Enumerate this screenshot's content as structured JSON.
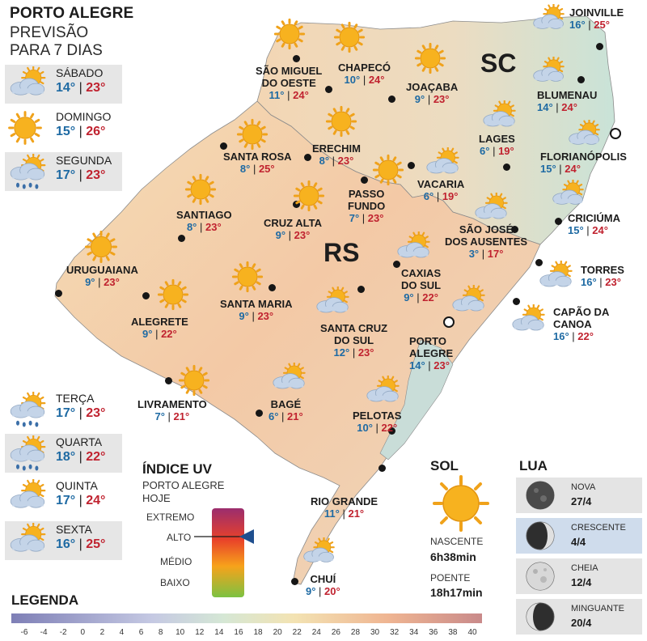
{
  "header": {
    "city": "PORTO ALEGRE",
    "line2": "PREVISÃO",
    "line3": "PARA 7 DIAS"
  },
  "forecast_days_top": [
    {
      "day": "SÁBADO",
      "min": "14°",
      "max": "23°",
      "icon": "sun-cloud-icon"
    },
    {
      "day": "DOMINGO",
      "min": "15°",
      "max": "26°",
      "icon": "sun-icon"
    },
    {
      "day": "SEGUNDA",
      "min": "17°",
      "max": "23°",
      "icon": "sun-cloud-rain-icon"
    }
  ],
  "forecast_days_bottom": [
    {
      "day": "TERÇA",
      "min": "17°",
      "max": "23°",
      "icon": "sun-cloud-rain-icon"
    },
    {
      "day": "QUARTA",
      "min": "18°",
      "max": "22°",
      "icon": "sun-cloud-rain-icon"
    },
    {
      "day": "QUINTA",
      "min": "17°",
      "max": "24°",
      "icon": "sun-cloud-icon"
    },
    {
      "day": "SEXTA",
      "min": "16°",
      "max": "25°",
      "icon": "sun-cloud-icon"
    }
  ],
  "states": [
    "SC",
    "RS"
  ],
  "cities": [
    {
      "name": "JOINVILLE",
      "min": "16°",
      "max": "25°",
      "icon": "sun-cloud-icon"
    },
    {
      "name": "BLUMENAU",
      "min": "14°",
      "max": "24°",
      "icon": "sun-cloud-icon"
    },
    {
      "name": "FLORIANÓPOLIS",
      "min": "15°",
      "max": "24°",
      "icon": "sun-cloud-icon"
    },
    {
      "name": "CRICIÚMA",
      "min": "15°",
      "max": "24°",
      "icon": "sun-cloud-icon"
    },
    {
      "name": "TORRES",
      "min": "16°",
      "max": "23°",
      "icon": "sun-cloud-icon"
    },
    {
      "name": "CAPÃO DA\nCANOA",
      "min": "16°",
      "max": "22°",
      "icon": "sun-cloud-icon"
    },
    {
      "name": "SÃO MIGUEL\nDO OESTE",
      "min": "11°",
      "max": "24°",
      "icon": "sun-icon"
    },
    {
      "name": "CHAPECÓ",
      "min": "10°",
      "max": "24°",
      "icon": "sun-icon"
    },
    {
      "name": "JOAÇABA",
      "min": "9°",
      "max": "23°",
      "icon": "sun-icon"
    },
    {
      "name": "LAGES",
      "min": "6°",
      "max": "19°",
      "icon": "sun-cloud-icon"
    },
    {
      "name": "SANTA ROSA",
      "min": "8°",
      "max": "25°",
      "icon": "sun-icon"
    },
    {
      "name": "ERECHIM",
      "min": "8°",
      "max": "23°",
      "icon": "sun-icon"
    },
    {
      "name": "VACARIA",
      "min": "6°",
      "max": "19°",
      "icon": "sun-cloud-icon"
    },
    {
      "name": "PASSO\nFUNDO",
      "min": "7°",
      "max": "23°",
      "icon": "sun-icon"
    },
    {
      "name": "SANTIAGO",
      "min": "8°",
      "max": "23°",
      "icon": "sun-icon"
    },
    {
      "name": "CRUZ ALTA",
      "min": "9°",
      "max": "23°",
      "icon": "sun-icon"
    },
    {
      "name": "SÃO JOSÉ\nDOS AUSENTES",
      "min": "3°",
      "max": "17°",
      "icon": "sun-cloud-icon"
    },
    {
      "name": "URUGUAIANA",
      "min": "9°",
      "max": "23°",
      "icon": "sun-icon"
    },
    {
      "name": "CAXIAS\nDO SUL",
      "min": "9°",
      "max": "22°",
      "icon": "sun-cloud-icon"
    },
    {
      "name": "ALEGRETE",
      "min": "9°",
      "max": "22°",
      "icon": "sun-icon"
    },
    {
      "name": "SANTA MARIA",
      "min": "9°",
      "max": "23°",
      "icon": "sun-icon"
    },
    {
      "name": "SANTA CRUZ\nDO SUL",
      "min": "12°",
      "max": "23°",
      "icon": "sun-cloud-icon"
    },
    {
      "name": "PORTO\nALEGRE",
      "min": "14°",
      "max": "23°",
      "icon": "sun-cloud-icon"
    },
    {
      "name": "LIVRAMENTO",
      "min": "7°",
      "max": "21°",
      "icon": "sun-icon"
    },
    {
      "name": "BAGÉ",
      "min": "6°",
      "max": "21°",
      "icon": "sun-cloud-icon"
    },
    {
      "name": "PELOTAS",
      "min": "10°",
      "max": "22°",
      "icon": "sun-cloud-icon"
    },
    {
      "name": "RIO GRANDE",
      "min": "11°",
      "max": "21°",
      "icon": "sun-cloud-icon"
    },
    {
      "name": "CHUÍ",
      "min": "9°",
      "max": "20°",
      "icon": "sun-cloud-icon"
    }
  ],
  "uv": {
    "title": "ÍNDICE UV",
    "subtitle1": "PORTO ALEGRE",
    "subtitle2": "HOJE",
    "levels": [
      "EXTREMO",
      "ALTO",
      "MÉDIO",
      "BAIXO"
    ],
    "current_level": "ALTO"
  },
  "sun": {
    "title": "SOL",
    "rise_label": "NASCENTE",
    "rise_time": "6h38min",
    "set_label": "POENTE",
    "set_time": "18h17min"
  },
  "moon": {
    "title": "LUA",
    "phases": [
      {
        "name": "NOVA",
        "date": "27/4",
        "icon": "new-moon-icon"
      },
      {
        "name": "CRESCENTE",
        "date": "4/4",
        "icon": "waxing-moon-icon",
        "highlighted": true
      },
      {
        "name": "CHEIA",
        "date": "12/4",
        "icon": "full-moon-icon"
      },
      {
        "name": "MINGUANTE",
        "date": "20/4",
        "icon": "waning-moon-icon"
      }
    ]
  },
  "legend": {
    "title": "LEGENDA",
    "ticks": [
      "-6",
      "-4",
      "-2",
      "0",
      "2",
      "4",
      "6",
      "8",
      "10",
      "12",
      "14",
      "16",
      "18",
      "20",
      "22",
      "24",
      "26",
      "28",
      "30",
      "32",
      "34",
      "36",
      "38",
      "40"
    ]
  },
  "colors": {
    "min_temp": "#1e6aa3",
    "max_temp": "#c0222f",
    "uv_extreme": "#9b2d6e",
    "uv_high": "#e8412a",
    "uv_medium": "#f7a21b",
    "uv_low": "#7cc242",
    "legend_cold": "#7e7fb6",
    "legend_warm": "#c98a8a"
  }
}
